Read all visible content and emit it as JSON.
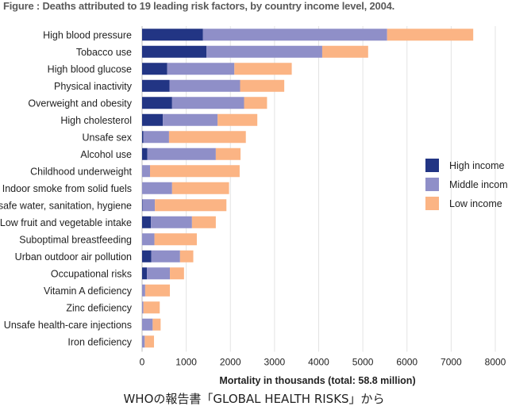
{
  "chart_data": {
    "type": "bar",
    "orientation": "horizontal",
    "stacked": true,
    "title": "Figure : Deaths attributed to 19 leading risk factors, by country income level, 2004.",
    "xlabel": "Mortality in thousands (total: 58.8 million)",
    "ylabel": "",
    "xlim": [
      0,
      8000
    ],
    "xticks": [
      0,
      1000,
      2000,
      3000,
      4000,
      5000,
      6000,
      7000,
      8000
    ],
    "grid": true,
    "legend_position": "right",
    "categories": [
      "High blood pressure",
      "Tobacco use",
      "High blood glucose",
      "Physical inactivity",
      "Overweight and obesity",
      "High cholesterol",
      "Unsafe sex",
      "Alcohol use",
      "Childhood underweight",
      "Indoor smoke from solid fuels",
      "Unsafe water, sanitation, hygiene",
      "Low fruit and vegetable intake",
      "Suboptimal breastfeeding",
      "Urban outdoor air pollution",
      "Occupational risks",
      "Vitamin A deficiency",
      "Zinc deficiency",
      "Unsafe health-care injections",
      "Iron deficiency"
    ],
    "series": [
      {
        "name": "High income",
        "color": "#223584",
        "values": [
          1380,
          1460,
          570,
          620,
          680,
          470,
          30,
          120,
          0,
          0,
          10,
          200,
          0,
          210,
          110,
          0,
          0,
          0,
          0
        ]
      },
      {
        "name": "Middle income",
        "color": "#8f8fc8",
        "values": [
          4170,
          2620,
          1520,
          1600,
          1630,
          1240,
          580,
          1550,
          180,
          680,
          280,
          930,
          280,
          650,
          520,
          70,
          30,
          240,
          60
        ]
      },
      {
        "name": "Low income",
        "color": "#fbb484",
        "values": [
          1950,
          1040,
          1300,
          1000,
          520,
          900,
          1740,
          560,
          2030,
          1290,
          1620,
          540,
          960,
          300,
          320,
          560,
          370,
          180,
          210
        ]
      }
    ]
  },
  "caption": "WHOの報告書「GLOBAL HEALTH RISKS」から"
}
